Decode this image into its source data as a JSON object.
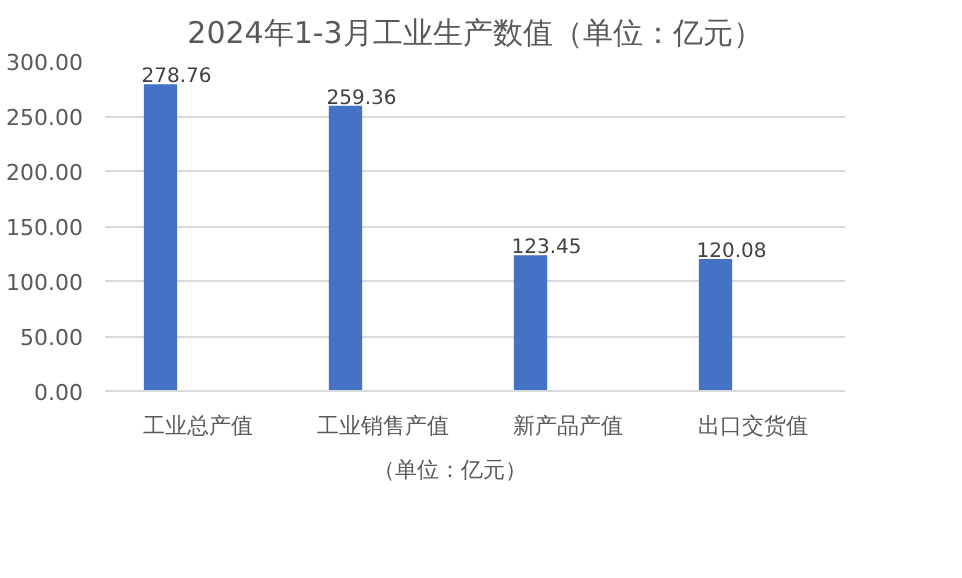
{
  "chart_data": {
    "type": "bar",
    "title": "2024年1-3月工业生产数值（单位：亿元）",
    "categories": [
      "工业总产值",
      "工业销售产值",
      "新产品产值",
      "出口交货值"
    ],
    "series": [
      {
        "name": "（单位：亿元）",
        "color": "#4472c4",
        "values": [
          278.76,
          259.36,
          123.45,
          120.08
        ]
      },
      {
        "color": "#ed7d31",
        "values": [
          null,
          null,
          null,
          null
        ]
      },
      {
        "color": "#a5a5a5",
        "values": [
          null,
          null,
          null,
          null
        ]
      }
    ],
    "ylim": [
      0,
      300
    ],
    "yticks": [
      {
        "value": 0,
        "label": "0.00"
      },
      {
        "value": 50,
        "label": "50.00"
      },
      {
        "value": 100,
        "label": "100.00"
      },
      {
        "value": 150,
        "label": "150.00"
      },
      {
        "value": 200,
        "label": "200.00"
      },
      {
        "value": 250,
        "label": "250.00"
      },
      {
        "value": 300,
        "label": "300.00"
      }
    ],
    "grid": "y",
    "legend": "bottom",
    "data_labels": true
  }
}
